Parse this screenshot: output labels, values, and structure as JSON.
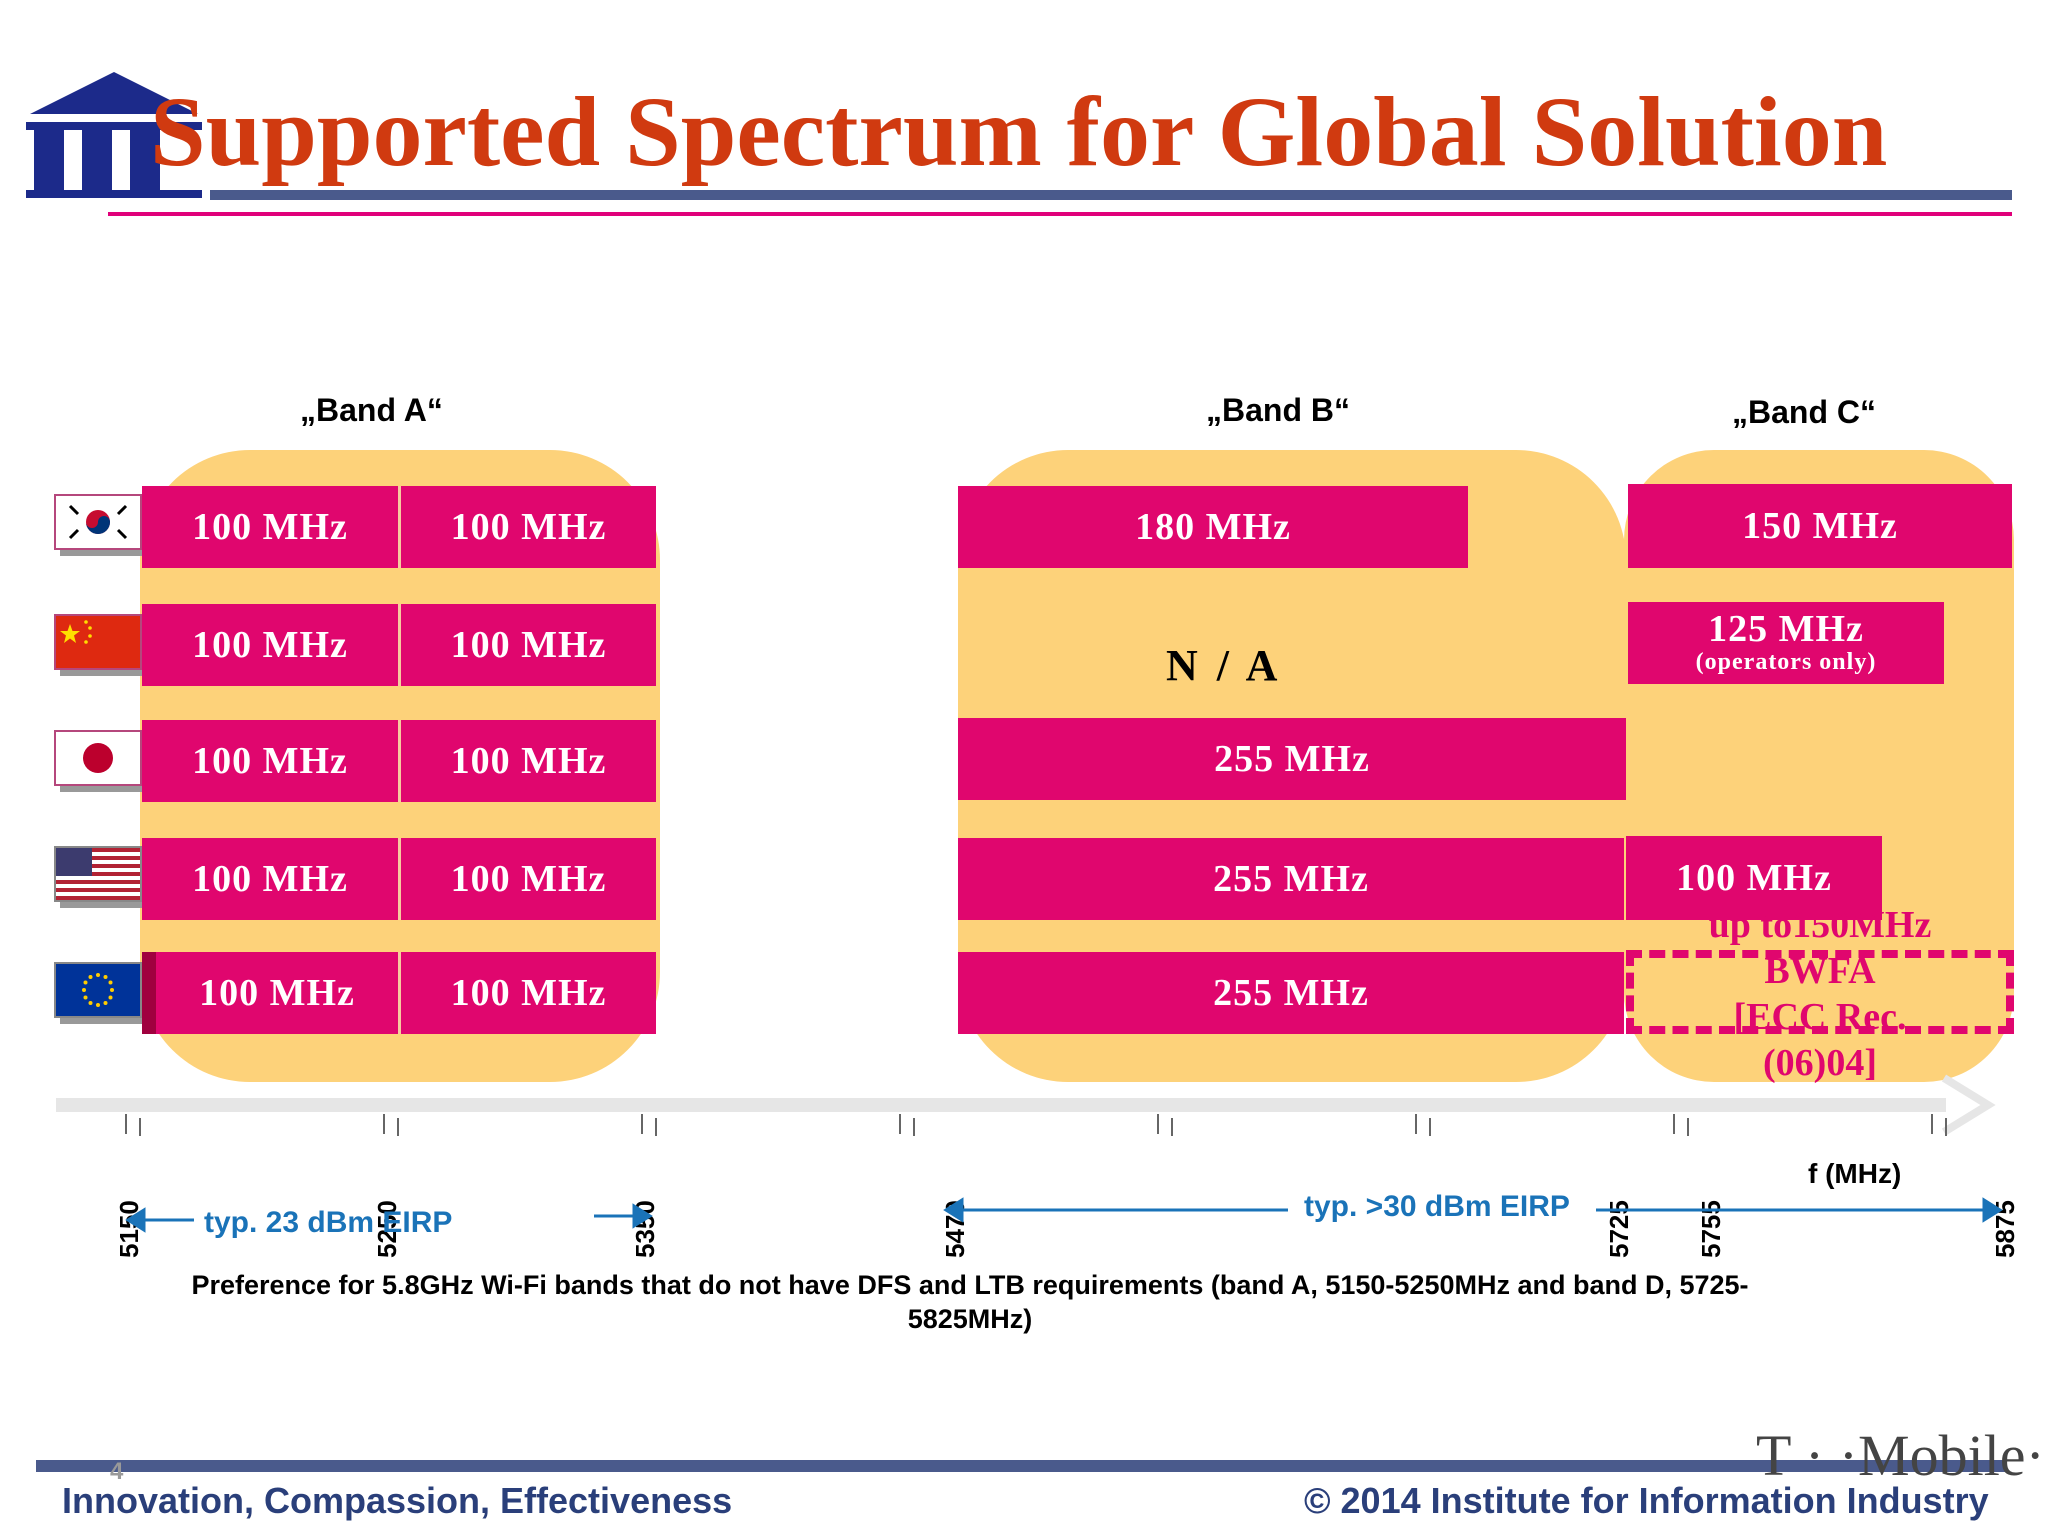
{
  "header": {
    "title": "Supported Spectrum for Global Solution",
    "logo_text": "III"
  },
  "bands": {
    "a_label": "„Band A“",
    "b_label": "„Band B“",
    "c_label": "„Band C“"
  },
  "rows": [
    {
      "country": "Korea",
      "band_a": [
        "100 MHz",
        "100 MHz"
      ],
      "band_b": "180 MHz",
      "band_c": "150 MHz"
    },
    {
      "country": "China",
      "band_a": [
        "100 MHz",
        "100 MHz"
      ],
      "band_b": "N / A",
      "band_c": "125 MHz",
      "band_c_note": "(operators only)"
    },
    {
      "country": "Japan",
      "band_a": [
        "100 MHz",
        "100 MHz"
      ],
      "band_b": "255 MHz"
    },
    {
      "country": "USA",
      "band_a": [
        "100 MHz",
        "100 MHz"
      ],
      "band_b": "255 MHz",
      "band_c": "100 MHz"
    },
    {
      "country": "EU",
      "band_a": [
        "100 MHz",
        "100 MHz"
      ],
      "band_b": "255 MHz",
      "band_c_ecc": [
        "up to150MHz",
        "BWFA",
        "[ECC Rec.",
        "(06)04]"
      ]
    }
  ],
  "axis": {
    "ticks": [
      "5150",
      "5250",
      "5350",
      "5470",
      "5725",
      "5755",
      "5875"
    ],
    "unit_label": "f (MHz)",
    "eirp_low": "typ. 23 dBm EIRP",
    "eirp_high": "typ. >30 dBm EIRP"
  },
  "preference_note": "Preference for  5.8GHz Wi-Fi bands that do not have DFS and LTB requirements (band A, 5150-5250MHz and band D, 5725-5825MHz)",
  "footer": {
    "tagline": "Innovation, Compassion, Effectiveness",
    "copyright": "© 2014 Institute for Information Industry",
    "page": "4",
    "brand": "T · ·Mobile·"
  },
  "colors": {
    "title": "#d03a10",
    "bar": "#e0066e",
    "blob": "#fdd27a",
    "eirp": "#1a73b8",
    "footer": "#2a3f7a"
  }
}
